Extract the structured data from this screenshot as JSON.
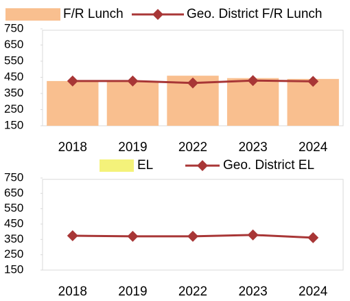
{
  "chart_data": [
    {
      "type": "combo",
      "categories": [
        "2018",
        "2019",
        "2022",
        "2023",
        "2024"
      ],
      "series": [
        {
          "name": "F/R Lunch",
          "type": "bar",
          "color": "#f9bf8f",
          "values": [
            427,
            427,
            460,
            445,
            440
          ]
        },
        {
          "name": "Geo. District F/R Lunch",
          "type": "line",
          "color": "#a83636",
          "values": [
            427,
            427,
            415,
            430,
            425
          ]
        }
      ],
      "ylim": [
        150,
        750
      ],
      "yticks": [
        150,
        250,
        350,
        450,
        550,
        650,
        750
      ]
    },
    {
      "type": "combo",
      "categories": [
        "2018",
        "2019",
        "2022",
        "2023",
        "2024"
      ],
      "series": [
        {
          "name": "EL",
          "type": "bar",
          "color": "#f4f27a",
          "values": [
            null,
            null,
            null,
            null,
            null
          ]
        },
        {
          "name": "Geo. District EL",
          "type": "line",
          "color": "#a83636",
          "values": [
            374,
            370,
            370,
            379,
            361
          ]
        }
      ],
      "ylim": [
        150,
        750
      ],
      "yticks": [
        150,
        250,
        350,
        450,
        550,
        650,
        750
      ]
    }
  ]
}
